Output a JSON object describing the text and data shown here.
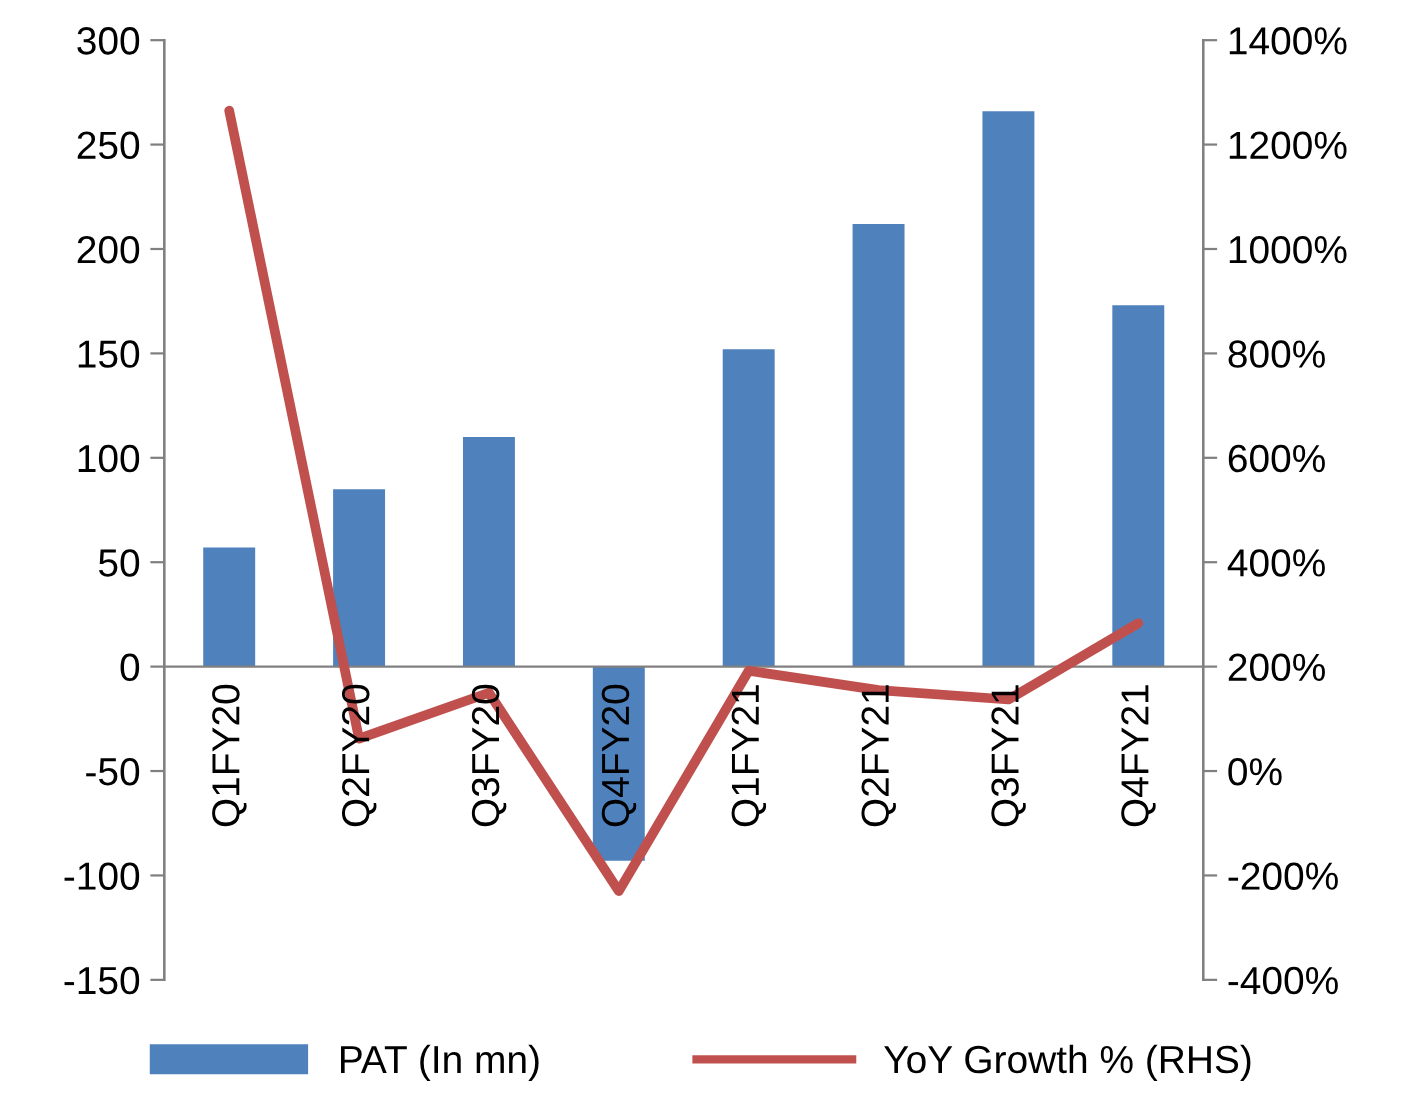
{
  "chart_data": {
    "type": "bar",
    "categories": [
      "Q1FY20",
      "Q2FY20",
      "Q3FY20",
      "Q4FY20",
      "Q1FY21",
      "Q2FY21",
      "Q3FY21",
      "Q4FY21"
    ],
    "series": [
      {
        "name": "PAT (In mn)",
        "color": "#4f81bd",
        "values": [
          57,
          85,
          110,
          -93,
          152,
          212,
          266,
          173
        ]
      },
      {
        "name": "YoY Growth % (RHS)",
        "type": "line",
        "axis": "y2",
        "color": "#c0504d",
        "values": [
          1265,
          62,
          150,
          -230,
          192,
          155,
          137,
          283
        ]
      }
    ],
    "ylim": [
      -150,
      300
    ],
    "yticks": [
      -150,
      -100,
      -50,
      0,
      50,
      100,
      150,
      200,
      250,
      300
    ],
    "y2lim": [
      -400,
      1400
    ],
    "y2ticks": [
      {
        "value": -400,
        "label": "-400%"
      },
      {
        "value": -200,
        "label": "-200%"
      },
      {
        "value": 0,
        "label": "0%"
      },
      {
        "value": 200,
        "label": "200%"
      },
      {
        "value": 400,
        "label": "400%"
      },
      {
        "value": 600,
        "label": "600%"
      },
      {
        "value": 800,
        "label": "800%"
      },
      {
        "value": 1000,
        "label": "1000%"
      },
      {
        "value": 1200,
        "label": "1200%"
      },
      {
        "value": 1400,
        "label": "1400%"
      }
    ],
    "legend": "bottom",
    "grid": false
  }
}
